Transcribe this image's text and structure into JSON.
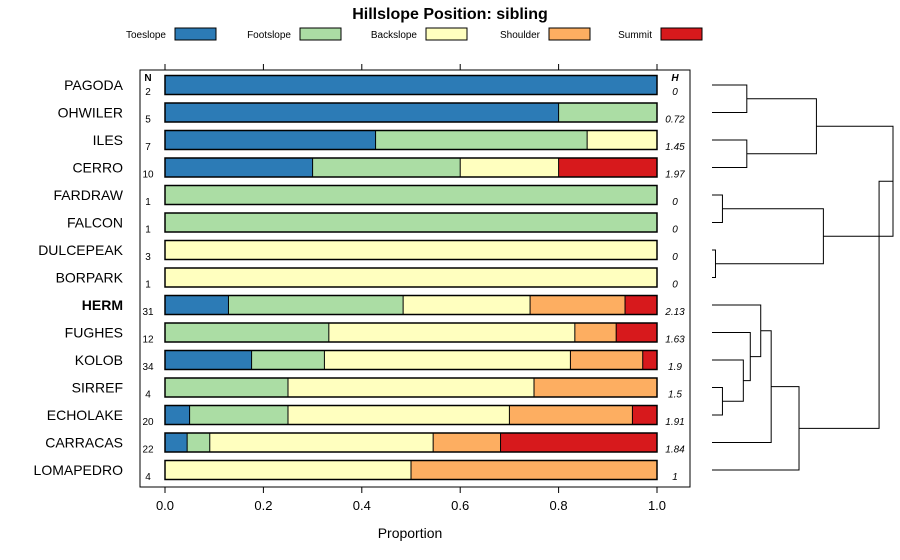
{
  "chart_data": {
    "type": "stacked-bar-horizontal",
    "title": "Hillslope Position: sibling",
    "xlabel": "Proportion",
    "xlim": [
      0,
      1
    ],
    "x_ticks": [
      "0.0",
      "0.2",
      "0.4",
      "0.6",
      "0.8",
      "1.0"
    ],
    "x_tick_values": [
      0,
      0.2,
      0.4,
      0.6,
      0.8,
      1.0
    ],
    "n_header": "N",
    "h_header": "H",
    "legend": [
      {
        "name": "Toeslope",
        "color": "#2c7bb6"
      },
      {
        "name": "Footslope",
        "color": "#abdda4"
      },
      {
        "name": "Backslope",
        "color": "#ffffbf"
      },
      {
        "name": "Shoulder",
        "color": "#fdae61"
      },
      {
        "name": "Summit",
        "color": "#d7191c"
      }
    ],
    "rows": [
      {
        "name": "PAGODA",
        "n": "2",
        "h": "0",
        "values": [
          1.0,
          0,
          0,
          0,
          0
        ],
        "bold": false
      },
      {
        "name": "OHWILER",
        "n": "5",
        "h": "0.72",
        "values": [
          0.8,
          0.2,
          0,
          0,
          0
        ],
        "bold": false
      },
      {
        "name": "ILES",
        "n": "7",
        "h": "1.45",
        "values": [
          0.428,
          0.43,
          0.142,
          0,
          0
        ],
        "bold": false
      },
      {
        "name": "CERRO",
        "n": "10",
        "h": "1.97",
        "values": [
          0.3,
          0.3,
          0.2,
          0,
          0.2
        ],
        "bold": false
      },
      {
        "name": "FARDRAW",
        "n": "1",
        "h": "0",
        "values": [
          0,
          1.0,
          0,
          0,
          0
        ],
        "bold": false
      },
      {
        "name": "FALCON",
        "n": "1",
        "h": "0",
        "values": [
          0,
          1.0,
          0,
          0,
          0
        ],
        "bold": false
      },
      {
        "name": "DULCEPEAK",
        "n": "3",
        "h": "0",
        "values": [
          0,
          0,
          1.0,
          0,
          0
        ],
        "bold": false
      },
      {
        "name": "BORPARK",
        "n": "1",
        "h": "0",
        "values": [
          0,
          0,
          1.0,
          0,
          0
        ],
        "bold": false
      },
      {
        "name": "HERM",
        "n": "31",
        "h": "2.13",
        "values": [
          0.129,
          0.355,
          0.258,
          0.193,
          0.065
        ],
        "bold": true
      },
      {
        "name": "FUGHES",
        "n": "12",
        "h": "1.63",
        "values": [
          0,
          0.333,
          0.5,
          0.084,
          0.083
        ],
        "bold": false
      },
      {
        "name": "KOLOB",
        "n": "34",
        "h": "1.9",
        "values": [
          0.176,
          0.148,
          0.5,
          0.147,
          0.029
        ],
        "bold": false
      },
      {
        "name": "SIRREF",
        "n": "4",
        "h": "1.5",
        "values": [
          0,
          0.25,
          0.5,
          0.25,
          0
        ],
        "bold": false
      },
      {
        "name": "ECHOLAKE",
        "n": "20",
        "h": "1.91",
        "values": [
          0.05,
          0.2,
          0.45,
          0.25,
          0.05
        ],
        "bold": false
      },
      {
        "name": "CARRACAS",
        "n": "22",
        "h": "1.84",
        "values": [
          0.045,
          0.046,
          0.454,
          0.137,
          0.318
        ],
        "bold": false
      },
      {
        "name": "LOMAPEDRO",
        "n": "4",
        "h": "1",
        "values": [
          0,
          0,
          0.5,
          0.5,
          0
        ],
        "bold": false
      }
    ],
    "dendrogram": {
      "orientation": "right",
      "leaf_order": [
        "PAGODA",
        "OHWILER",
        "ILES",
        "CERRO",
        "FARDRAW",
        "FALCON",
        "DULCEPEAK",
        "BORPARK",
        "HERM",
        "FUGHES",
        "KOLOB",
        "SIRREF",
        "ECHOLAKE",
        "CARRACAS",
        "LOMAPEDRO"
      ],
      "merges": [
        {
          "a": "PAGODA",
          "b": "OHWILER",
          "height": 0.1
        },
        {
          "a": "ILES",
          "b": "CERRO",
          "height": 0.1
        },
        {
          "a": "m0",
          "b": "m1",
          "height": 0.3
        },
        {
          "a": "FARDRAW",
          "b": "FALCON",
          "height": 0.03
        },
        {
          "a": "DULCEPEAK",
          "b": "BORPARK",
          "height": 0.01
        },
        {
          "a": "m3",
          "b": "m4",
          "height": 0.32
        },
        {
          "a": "m2",
          "b": "m5",
          "height": 0.52
        },
        {
          "a": "SIRREF",
          "b": "ECHOLAKE",
          "height": 0.03
        },
        {
          "a": "KOLOB",
          "b": "m7",
          "height": 0.09
        },
        {
          "a": "FUGHES",
          "b": "m8",
          "height": 0.11
        },
        {
          "a": "HERM",
          "b": "m9",
          "height": 0.14
        },
        {
          "a": "m10",
          "b": "CARRACAS",
          "height": 0.17
        },
        {
          "a": "m11",
          "b": "LOMAPEDRO",
          "height": 0.25
        },
        {
          "a": "m6",
          "b": "m12",
          "height": 0.48
        }
      ]
    }
  }
}
